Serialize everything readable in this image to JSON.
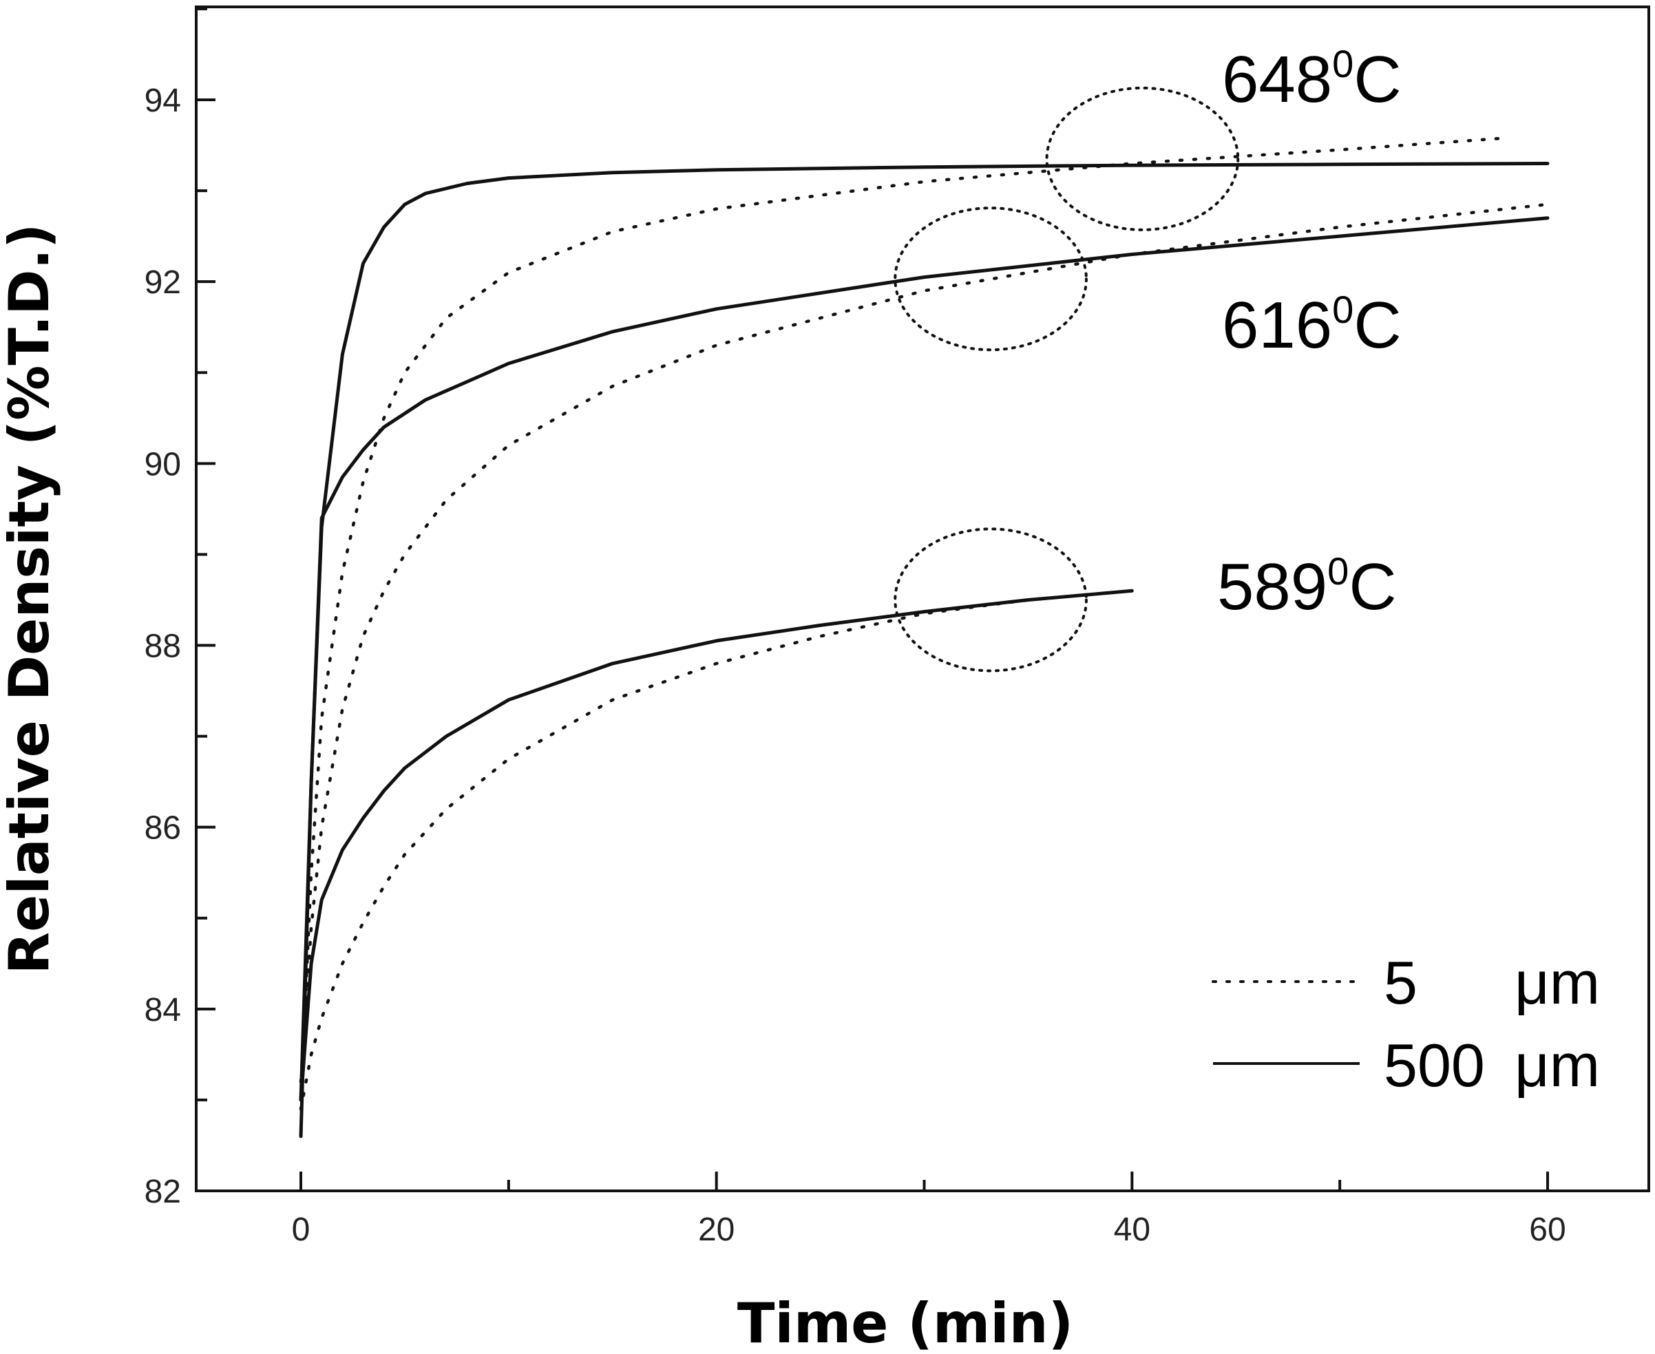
{
  "chart_data": {
    "type": "line",
    "title": "",
    "xlabel": "Time (min)",
    "ylabel": "Relative Density (%T.D.)",
    "xlim": [
      -5,
      65
    ],
    "ylim": [
      82,
      95
    ],
    "xticks": [
      0,
      20,
      40,
      60
    ],
    "yticks": [
      82,
      84,
      86,
      88,
      90,
      92,
      94
    ],
    "grid": false,
    "legend_position": "bottom-right",
    "legend": [
      {
        "label_value": "5",
        "label_unit": "μm",
        "style": "dotted"
      },
      {
        "label_value": "500",
        "label_unit": "μm",
        "style": "solid"
      }
    ],
    "annotations": [
      {
        "base": "648",
        "sup": "0",
        "tail": "C"
      },
      {
        "base": "616",
        "sup": "0",
        "tail": "C"
      },
      {
        "base": "589",
        "sup": "0",
        "tail": "C"
      }
    ],
    "series": [
      {
        "group": "648",
        "style": "solid",
        "x": [
          0,
          0.5,
          1,
          2,
          3,
          4,
          5,
          6,
          8,
          10,
          15,
          20,
          30,
          40,
          50,
          60
        ],
        "y": [
          83.0,
          86.5,
          89.3,
          91.2,
          92.2,
          92.6,
          92.85,
          92.97,
          93.08,
          93.14,
          93.2,
          93.23,
          93.26,
          93.28,
          93.29,
          93.3
        ]
      },
      {
        "group": "648",
        "style": "dotted",
        "x": [
          0,
          0.5,
          1,
          2,
          3,
          4,
          5,
          7,
          10,
          15,
          20,
          30,
          40,
          50,
          58
        ],
        "y": [
          83.0,
          85.5,
          87.2,
          88.8,
          89.8,
          90.5,
          91.0,
          91.6,
          92.1,
          92.55,
          92.8,
          93.1,
          93.3,
          93.45,
          93.58
        ]
      },
      {
        "group": "616",
        "style": "solid",
        "x": [
          0,
          0.5,
          1,
          2,
          3,
          4,
          6,
          8,
          10,
          15,
          20,
          30,
          40,
          50,
          60
        ],
        "y": [
          82.6,
          86.5,
          89.4,
          89.85,
          90.15,
          90.4,
          90.7,
          90.9,
          91.1,
          91.45,
          91.7,
          92.05,
          92.3,
          92.5,
          92.7
        ]
      },
      {
        "group": "616",
        "style": "dotted",
        "x": [
          0,
          0.5,
          1,
          2,
          3,
          4,
          5,
          7,
          10,
          15,
          20,
          30,
          40,
          50,
          60
        ],
        "y": [
          83.2,
          84.9,
          86.0,
          87.3,
          88.1,
          88.6,
          89.0,
          89.6,
          90.2,
          90.85,
          91.3,
          91.9,
          92.3,
          92.6,
          92.85
        ]
      },
      {
        "group": "589",
        "style": "solid",
        "x": [
          0,
          0.5,
          1,
          2,
          3,
          4,
          5,
          7,
          10,
          15,
          20,
          25,
          30,
          35,
          40
        ],
        "y": [
          83.0,
          84.5,
          85.2,
          85.75,
          86.1,
          86.4,
          86.65,
          87.0,
          87.4,
          87.8,
          88.05,
          88.22,
          88.37,
          88.5,
          88.6
        ]
      },
      {
        "group": "589",
        "style": "dotted",
        "x": [
          0,
          0.5,
          1,
          2,
          3,
          4,
          5,
          7,
          10,
          15,
          20,
          25,
          30,
          35,
          40
        ],
        "y": [
          82.9,
          83.5,
          83.9,
          84.5,
          84.95,
          85.35,
          85.7,
          86.2,
          86.75,
          87.4,
          87.8,
          88.1,
          88.35,
          88.5,
          88.6
        ]
      }
    ],
    "ellipses": [
      {
        "cx": 40.5,
        "cy": 93.35,
        "rx": 4.6,
        "ry": 0.78
      },
      {
        "cx": 33.2,
        "cy": 92.03,
        "rx": 4.6,
        "ry": 0.78
      },
      {
        "cx": 33.2,
        "cy": 88.5,
        "rx": 4.6,
        "ry": 0.78
      }
    ]
  }
}
